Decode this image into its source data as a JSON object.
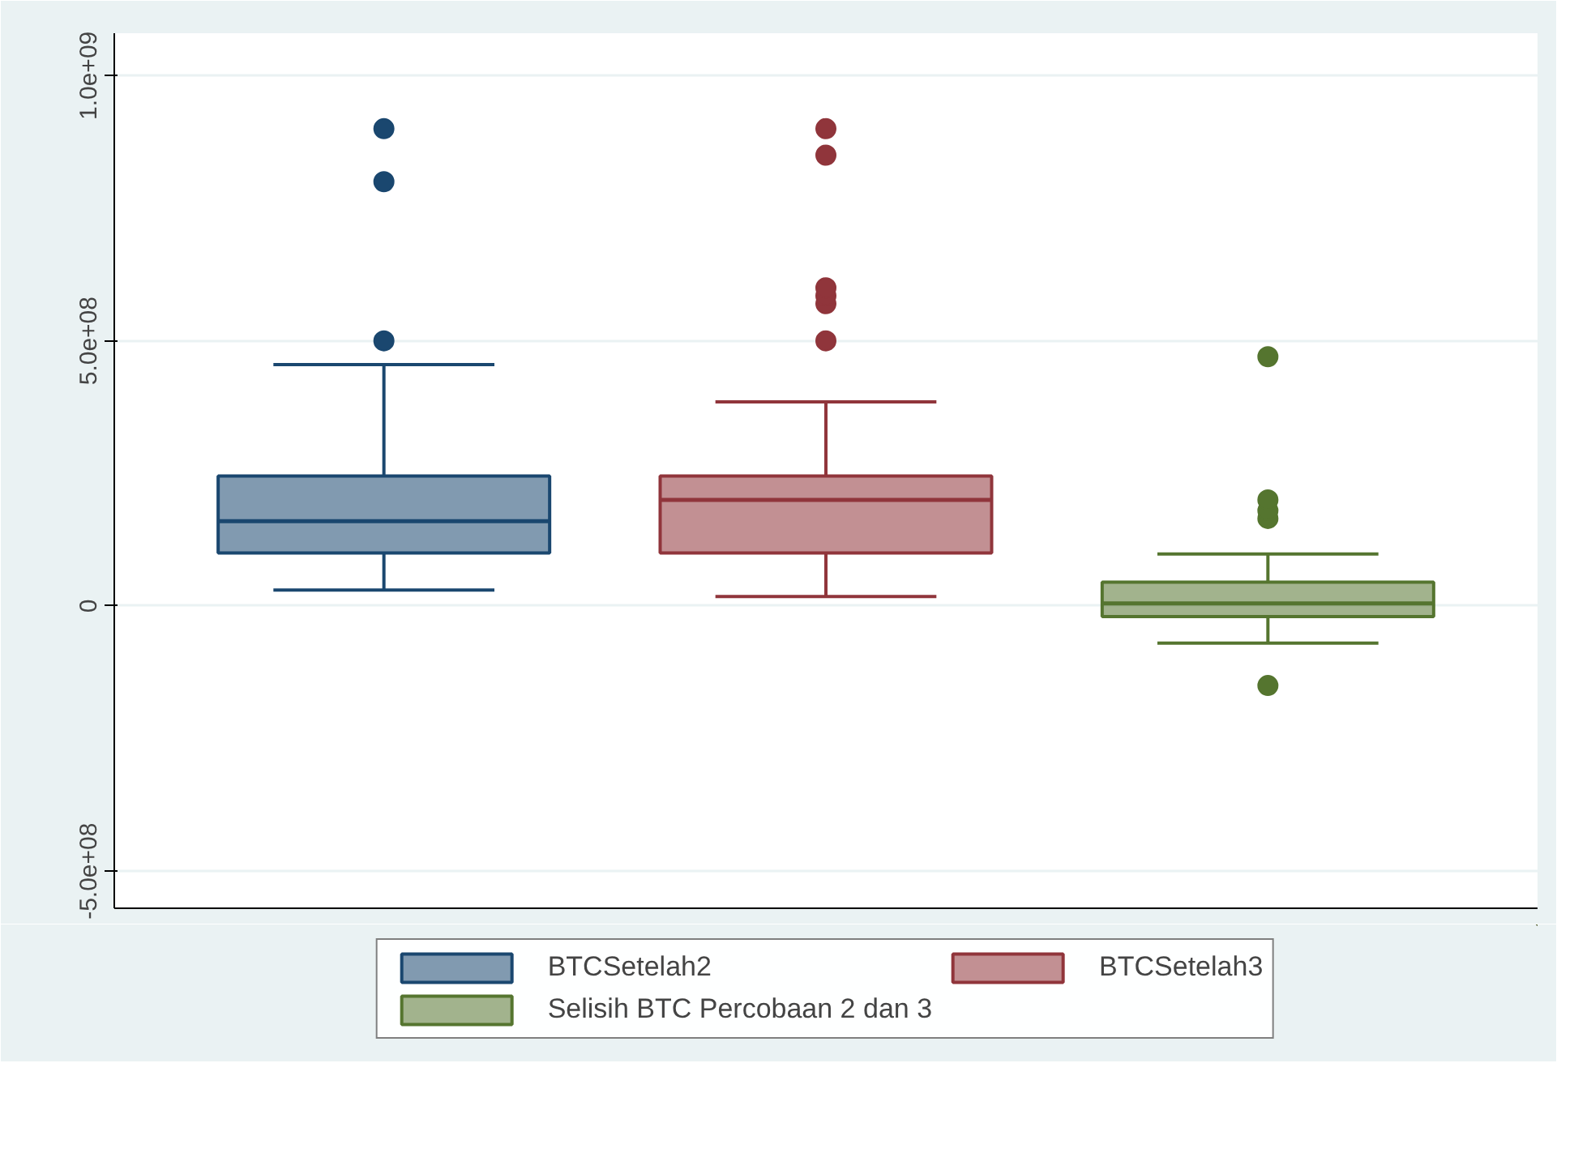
{
  "chart_data": {
    "type": "box",
    "categories": [
      null,
      null,
      null
    ],
    "series": [
      {
        "name": "BTCSetelah2",
        "color": "#1a476f",
        "boxes": [
          {
            "low": 30000000,
            "q1": 100000000,
            "median": 160000000,
            "q3": 245000000,
            "high": 455000000,
            "outliers": [
              500000000,
              800000000,
              900000000
            ]
          },
          null,
          null
        ]
      },
      {
        "name": "BTCSetelah3",
        "color": "#90353b",
        "boxes": [
          null,
          {
            "low": 18000000,
            "q1": 100000000,
            "median": 200000000,
            "q3": 245000000,
            "high": 385000000,
            "outliers": [
              500000000,
              570000000,
              585000000,
              600000000,
              850000000,
              900000000
            ]
          },
          null
        ]
      },
      {
        "name": "Selisih BTC Percobaan 2 dan 3",
        "color": "#55752f",
        "boxes": [
          null,
          null,
          {
            "low": -70000000,
            "q1": -20000000,
            "median": 5000000,
            "q3": 45000000,
            "high": 98000000,
            "outliers": [
              -150000000,
              165000000,
              180000000,
              200000000,
              470000000
            ]
          }
        ]
      }
    ],
    "ylim": [
      -570000000,
      1080000000
    ],
    "yticks": [
      {
        "value": -500000000,
        "label": "-5.0e+08"
      },
      {
        "value": 0,
        "label": "0"
      },
      {
        "value": 500000000,
        "label": "5.0e+08"
      },
      {
        "value": 1000000000,
        "label": "1.0e+09"
      }
    ],
    "grid": "y",
    "legend": "bottom"
  }
}
